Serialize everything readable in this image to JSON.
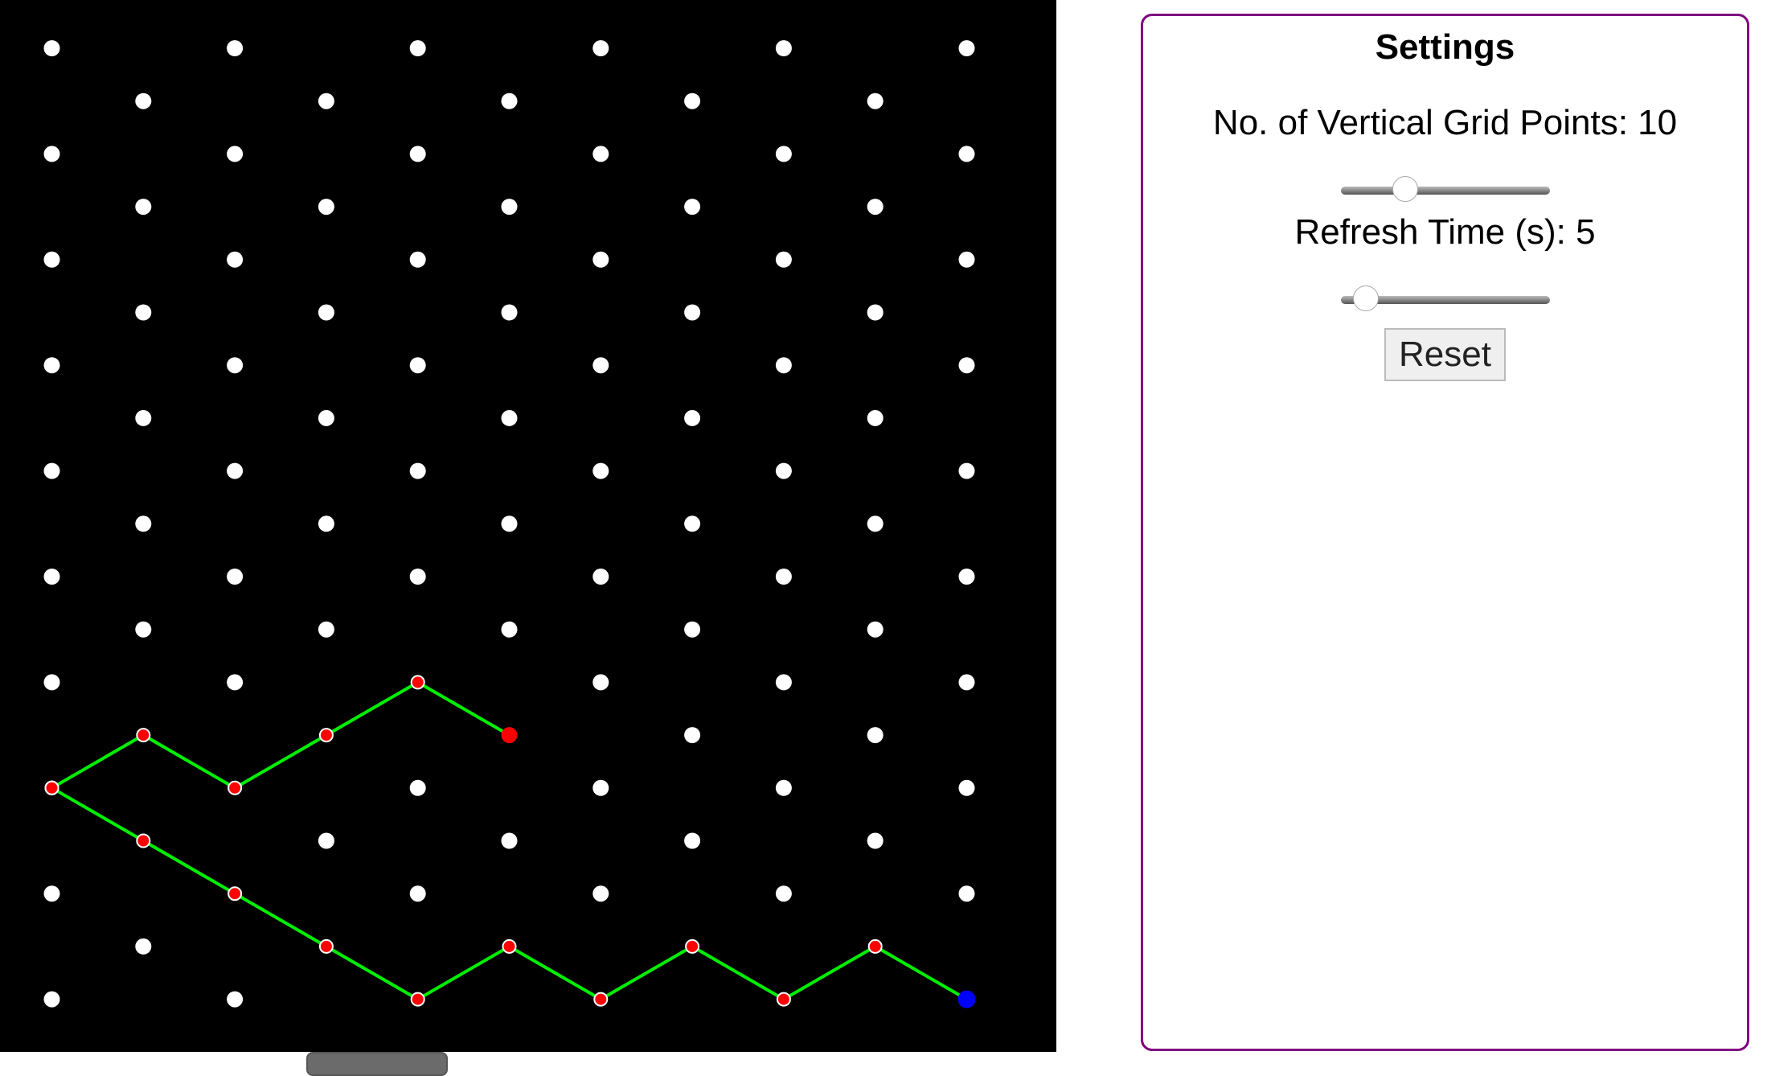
{
  "board": {
    "columns": 11,
    "rows": 19,
    "colors": {
      "background": "#000000",
      "grid_point": "#ffffff",
      "path_line": "#00ee00",
      "path_node": "#ff0000",
      "path_node_outline": "#ffffff",
      "end_point": "#ff0000",
      "target_point": "#0000ff"
    },
    "paths": [
      {
        "points": [
          [
            0,
            14
          ],
          [
            1,
            13
          ],
          [
            2,
            14
          ],
          [
            3,
            13
          ],
          [
            4,
            12
          ],
          [
            5,
            13
          ]
        ],
        "end": "red"
      },
      {
        "points": [
          [
            0,
            14
          ],
          [
            1,
            15
          ],
          [
            2,
            16
          ],
          [
            3,
            17
          ],
          [
            4,
            18
          ],
          [
            5,
            17
          ],
          [
            6,
            18
          ],
          [
            7,
            17
          ],
          [
            8,
            18
          ],
          [
            9,
            17
          ],
          [
            10,
            18
          ]
        ],
        "end": "blue"
      }
    ]
  },
  "settings": {
    "title": "Settings",
    "vertical_grid_label": "No. of Vertical Grid Points: 10",
    "vertical_grid_slider_fraction": 0.31,
    "refresh_label": "Refresh Time (s): 5",
    "refresh_slider_fraction": 0.12,
    "reset_label": "Reset",
    "border_color": "#800080"
  }
}
